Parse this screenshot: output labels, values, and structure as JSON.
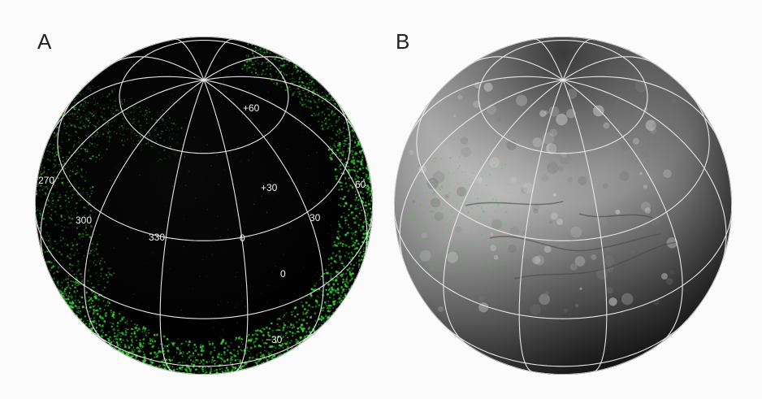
{
  "panels": [
    {
      "label": "A",
      "longitude_labels": [
        "270",
        "300",
        "330",
        "0",
        "30",
        "60"
      ],
      "latitude_labels": [
        "+60",
        "+30",
        "0",
        "−30"
      ]
    },
    {
      "label": "B"
    }
  ]
}
